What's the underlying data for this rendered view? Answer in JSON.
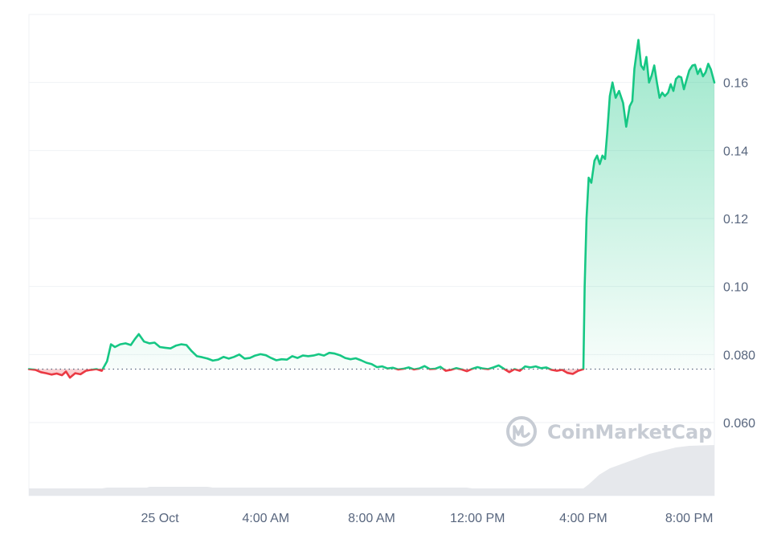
{
  "chart_data": {
    "type": "area",
    "brand_watermark": "CoinMarketCap",
    "baseline": 0.0757,
    "ylim": [
      0.0385,
      0.18
    ],
    "grid": true,
    "y_ticks": [
      {
        "value": 0.06,
        "label": "0.060"
      },
      {
        "value": 0.08,
        "label": "0.080"
      },
      {
        "value": 0.1,
        "label": "0.10"
      },
      {
        "value": 0.12,
        "label": "0.12"
      },
      {
        "value": 0.14,
        "label": "0.14"
      },
      {
        "value": 0.16,
        "label": "0.16"
      }
    ],
    "xlim": [
      -4.95,
      20.95
    ],
    "x_ticks": [
      {
        "value": 0,
        "label": "25 Oct"
      },
      {
        "value": 4,
        "label": "4:00 AM"
      },
      {
        "value": 8,
        "label": "8:00 AM"
      },
      {
        "value": 12,
        "label": "12:00 PM"
      },
      {
        "value": 16,
        "label": "4:00 PM"
      },
      {
        "value": 20,
        "label": "8:00 PM"
      }
    ],
    "series": [
      {
        "points": [
          [
            -4.95,
            0.0757
          ],
          [
            -4.7,
            0.0755
          ],
          [
            -4.5,
            0.0748
          ],
          [
            -4.3,
            0.0745
          ],
          [
            -4.1,
            0.0741
          ],
          [
            -3.9,
            0.0744
          ],
          [
            -3.7,
            0.0739
          ],
          [
            -3.55,
            0.075
          ],
          [
            -3.4,
            0.0732
          ],
          [
            -3.2,
            0.0745
          ],
          [
            -3.0,
            0.0742
          ],
          [
            -2.8,
            0.0752
          ],
          [
            -2.6,
            0.0755
          ],
          [
            -2.4,
            0.0757
          ],
          [
            -2.2,
            0.0752
          ],
          [
            -2.0,
            0.078
          ],
          [
            -1.85,
            0.083
          ],
          [
            -1.7,
            0.0822
          ],
          [
            -1.5,
            0.083
          ],
          [
            -1.3,
            0.0833
          ],
          [
            -1.1,
            0.0828
          ],
          [
            -0.95,
            0.0845
          ],
          [
            -0.8,
            0.086
          ],
          [
            -0.6,
            0.0838
          ],
          [
            -0.4,
            0.0833
          ],
          [
            -0.2,
            0.0835
          ],
          [
            0.0,
            0.0822
          ],
          [
            0.2,
            0.082
          ],
          [
            0.4,
            0.0818
          ],
          [
            0.6,
            0.0826
          ],
          [
            0.8,
            0.083
          ],
          [
            1.0,
            0.0828
          ],
          [
            1.2,
            0.081
          ],
          [
            1.4,
            0.0795
          ],
          [
            1.6,
            0.0792
          ],
          [
            1.8,
            0.0788
          ],
          [
            2.0,
            0.0782
          ],
          [
            2.2,
            0.0785
          ],
          [
            2.4,
            0.0793
          ],
          [
            2.6,
            0.0788
          ],
          [
            2.8,
            0.0793
          ],
          [
            3.0,
            0.08
          ],
          [
            3.2,
            0.0788
          ],
          [
            3.4,
            0.079
          ],
          [
            3.6,
            0.0797
          ],
          [
            3.8,
            0.0801
          ],
          [
            4.0,
            0.0798
          ],
          [
            4.2,
            0.079
          ],
          [
            4.4,
            0.0783
          ],
          [
            4.6,
            0.0786
          ],
          [
            4.8,
            0.0785
          ],
          [
            5.0,
            0.0795
          ],
          [
            5.2,
            0.079
          ],
          [
            5.4,
            0.0797
          ],
          [
            5.6,
            0.0795
          ],
          [
            5.8,
            0.0797
          ],
          [
            6.0,
            0.0801
          ],
          [
            6.2,
            0.0797
          ],
          [
            6.4,
            0.0805
          ],
          [
            6.6,
            0.0803
          ],
          [
            6.8,
            0.0798
          ],
          [
            7.0,
            0.079
          ],
          [
            7.2,
            0.0786
          ],
          [
            7.4,
            0.0789
          ],
          [
            7.6,
            0.0783
          ],
          [
            7.8,
            0.0776
          ],
          [
            8.0,
            0.0772
          ],
          [
            8.2,
            0.0763
          ],
          [
            8.4,
            0.0765
          ],
          [
            8.6,
            0.0759
          ],
          [
            8.8,
            0.0761
          ],
          [
            9.0,
            0.0756
          ],
          [
            9.2,
            0.0758
          ],
          [
            9.4,
            0.0762
          ],
          [
            9.6,
            0.0756
          ],
          [
            9.8,
            0.0759
          ],
          [
            10.0,
            0.0766
          ],
          [
            10.2,
            0.0757
          ],
          [
            10.4,
            0.0758
          ],
          [
            10.6,
            0.0764
          ],
          [
            10.8,
            0.0752
          ],
          [
            11.0,
            0.0755
          ],
          [
            11.2,
            0.076
          ],
          [
            11.4,
            0.0756
          ],
          [
            11.6,
            0.0751
          ],
          [
            11.8,
            0.0758
          ],
          [
            12.0,
            0.0763
          ],
          [
            12.2,
            0.0759
          ],
          [
            12.4,
            0.0757
          ],
          [
            12.6,
            0.0762
          ],
          [
            12.8,
            0.0768
          ],
          [
            13.0,
            0.0758
          ],
          [
            13.2,
            0.0748
          ],
          [
            13.4,
            0.0757
          ],
          [
            13.6,
            0.0752
          ],
          [
            13.8,
            0.0765
          ],
          [
            14.0,
            0.0762
          ],
          [
            14.2,
            0.0765
          ],
          [
            14.4,
            0.076
          ],
          [
            14.6,
            0.0762
          ],
          [
            14.8,
            0.0755
          ],
          [
            15.0,
            0.0752
          ],
          [
            15.2,
            0.0755
          ],
          [
            15.4,
            0.0746
          ],
          [
            15.6,
            0.0743
          ],
          [
            15.8,
            0.0752
          ],
          [
            16.0,
            0.0757
          ],
          [
            16.05,
            0.1
          ],
          [
            16.12,
            0.12
          ],
          [
            16.2,
            0.132
          ],
          [
            16.3,
            0.1305
          ],
          [
            16.42,
            0.137
          ],
          [
            16.52,
            0.1385
          ],
          [
            16.62,
            0.136
          ],
          [
            16.72,
            0.1385
          ],
          [
            16.82,
            0.1375
          ],
          [
            16.9,
            0.145
          ],
          [
            17.0,
            0.156
          ],
          [
            17.1,
            0.16
          ],
          [
            17.22,
            0.1555
          ],
          [
            17.35,
            0.1575
          ],
          [
            17.5,
            0.154
          ],
          [
            17.62,
            0.147
          ],
          [
            17.75,
            0.153
          ],
          [
            17.85,
            0.1545
          ],
          [
            17.93,
            0.164
          ],
          [
            18.0,
            0.168
          ],
          [
            18.08,
            0.1725
          ],
          [
            18.18,
            0.165
          ],
          [
            18.28,
            0.1638
          ],
          [
            18.38,
            0.1675
          ],
          [
            18.48,
            0.16
          ],
          [
            18.58,
            0.162
          ],
          [
            18.68,
            0.165
          ],
          [
            18.78,
            0.16
          ],
          [
            18.88,
            0.1555
          ],
          [
            18.98,
            0.157
          ],
          [
            19.08,
            0.156
          ],
          [
            19.2,
            0.157
          ],
          [
            19.3,
            0.1595
          ],
          [
            19.4,
            0.1575
          ],
          [
            19.5,
            0.161
          ],
          [
            19.6,
            0.1618
          ],
          [
            19.7,
            0.1615
          ],
          [
            19.8,
            0.158
          ],
          [
            19.9,
            0.1608
          ],
          [
            20.0,
            0.1635
          ],
          [
            20.12,
            0.165
          ],
          [
            20.22,
            0.1652
          ],
          [
            20.32,
            0.1625
          ],
          [
            20.42,
            0.164
          ],
          [
            20.52,
            0.1618
          ],
          [
            20.62,
            0.163
          ],
          [
            20.72,
            0.1655
          ],
          [
            20.82,
            0.1638
          ],
          [
            20.95,
            0.16
          ]
        ]
      }
    ],
    "volume": [
      [
        -4.95,
        0.09
      ],
      [
        -2.2,
        0.09
      ],
      [
        -2.0,
        0.1
      ],
      [
        -0.5,
        0.1
      ],
      [
        -0.4,
        0.11
      ],
      [
        1.8,
        0.11
      ],
      [
        2.0,
        0.1
      ],
      [
        11.6,
        0.1
      ],
      [
        11.8,
        0.09
      ],
      [
        16.0,
        0.09
      ],
      [
        16.2,
        0.14
      ],
      [
        16.6,
        0.26
      ],
      [
        17.0,
        0.34
      ],
      [
        17.5,
        0.4
      ],
      [
        18.0,
        0.46
      ],
      [
        18.5,
        0.52
      ],
      [
        19.0,
        0.56
      ],
      [
        19.5,
        0.6
      ],
      [
        20.0,
        0.62
      ],
      [
        20.95,
        0.63
      ]
    ],
    "colors": {
      "up": "#16c784",
      "down": "#ea3943",
      "grid": "#eff2f5",
      "baseline": "#58667e",
      "volume": "#e6e8ec",
      "axis_text": "#58667e"
    }
  }
}
